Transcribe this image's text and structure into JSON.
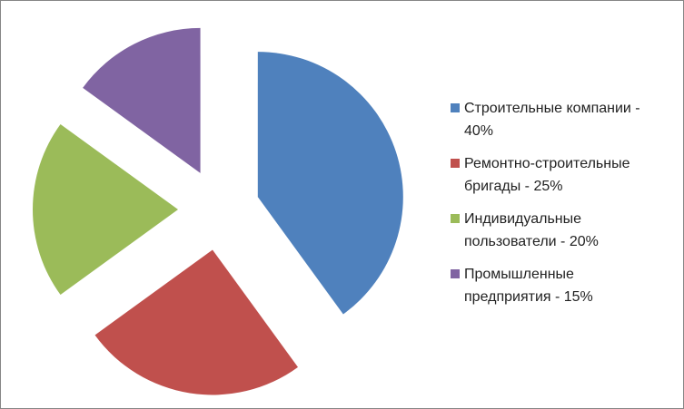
{
  "chart_data": {
    "type": "pie",
    "categories": [
      "Строительные компании - 40%",
      "Ремонтно-строительные бригады - 25%",
      "Индивидуальные пользователи - 20%",
      "Промышленные предприятия - 15%"
    ],
    "values": [
      40,
      25,
      20,
      15
    ],
    "colors": [
      "#4f81bd",
      "#c0504d",
      "#9bbb59",
      "#8064a2"
    ],
    "legend": "right"
  }
}
